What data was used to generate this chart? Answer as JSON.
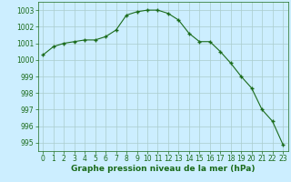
{
  "x": [
    0,
    1,
    2,
    3,
    4,
    5,
    6,
    7,
    8,
    9,
    10,
    11,
    12,
    13,
    14,
    15,
    16,
    17,
    18,
    19,
    20,
    21,
    22,
    23
  ],
  "y": [
    1000.3,
    1000.8,
    1001.0,
    1001.1,
    1001.2,
    1001.2,
    1001.4,
    1001.8,
    1002.7,
    1002.9,
    1003.0,
    1003.0,
    1002.8,
    1002.4,
    1001.6,
    1001.1,
    1001.1,
    1000.5,
    999.8,
    999.0,
    998.3,
    997.0,
    996.3,
    994.9
  ],
  "line_color": "#1a6b1a",
  "marker_color": "#1a6b1a",
  "bg_color": "#cceeff",
  "grid_color": "#aacccc",
  "xlabel": "Graphe pression niveau de la mer (hPa)",
  "ylim": [
    994.5,
    1003.5
  ],
  "yticks": [
    995,
    996,
    997,
    998,
    999,
    1000,
    1001,
    1002,
    1003
  ],
  "xticks": [
    0,
    1,
    2,
    3,
    4,
    5,
    6,
    7,
    8,
    9,
    10,
    11,
    12,
    13,
    14,
    15,
    16,
    17,
    18,
    19,
    20,
    21,
    22,
    23
  ],
  "tick_label_fontsize": 5.5,
  "xlabel_fontsize": 6.5
}
